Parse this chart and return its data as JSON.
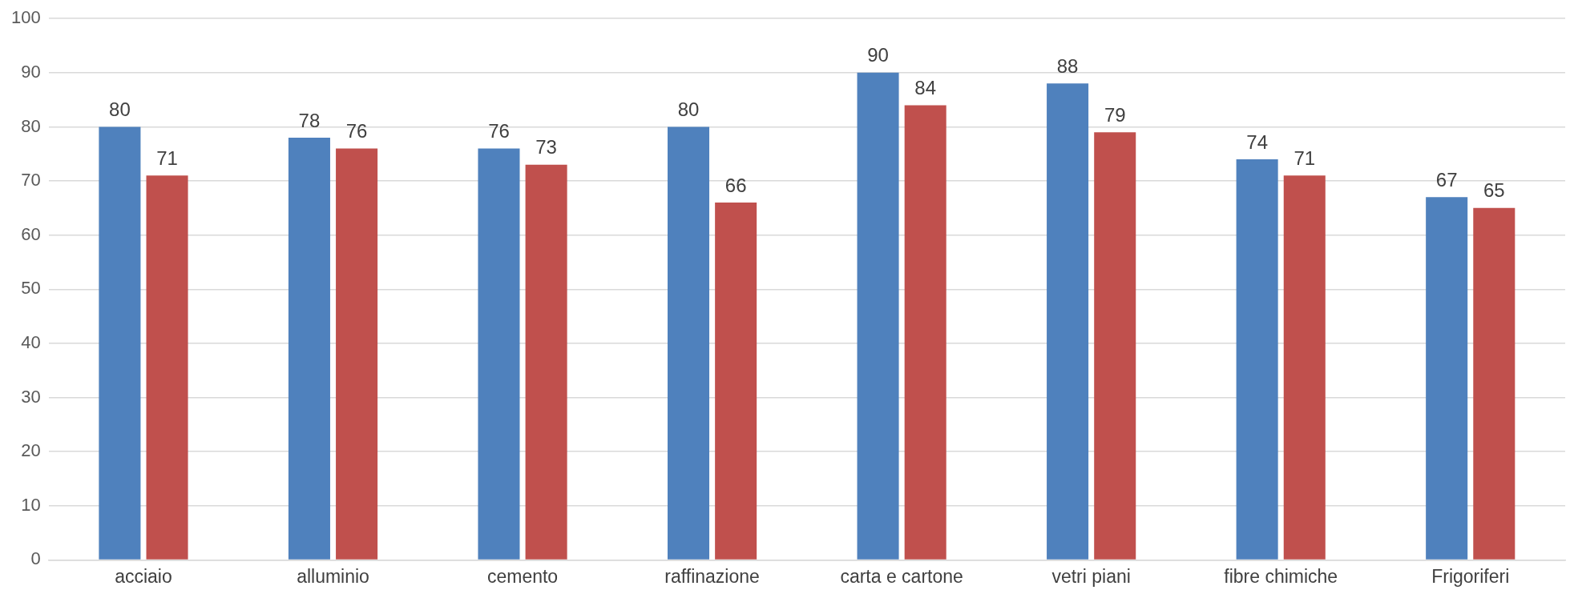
{
  "chart_data": {
    "type": "bar",
    "categories": [
      "acciaio",
      "alluminio",
      "cemento",
      "raffinazione",
      "carta e cartone",
      "vetri piani",
      "fibre chimiche",
      "Frigoriferi"
    ],
    "series": [
      {
        "color": "#4f81bd",
        "values": [
          80,
          78,
          76,
          80,
          90,
          88,
          74,
          67
        ]
      },
      {
        "color": "#c0504d",
        "values": [
          71,
          76,
          73,
          66,
          84,
          79,
          71,
          65
        ]
      }
    ],
    "ylim": [
      0,
      100
    ],
    "yticks": [
      0,
      10,
      20,
      30,
      40,
      50,
      60,
      70,
      80,
      90,
      100
    ],
    "grid": "y",
    "data_labels": true
  }
}
